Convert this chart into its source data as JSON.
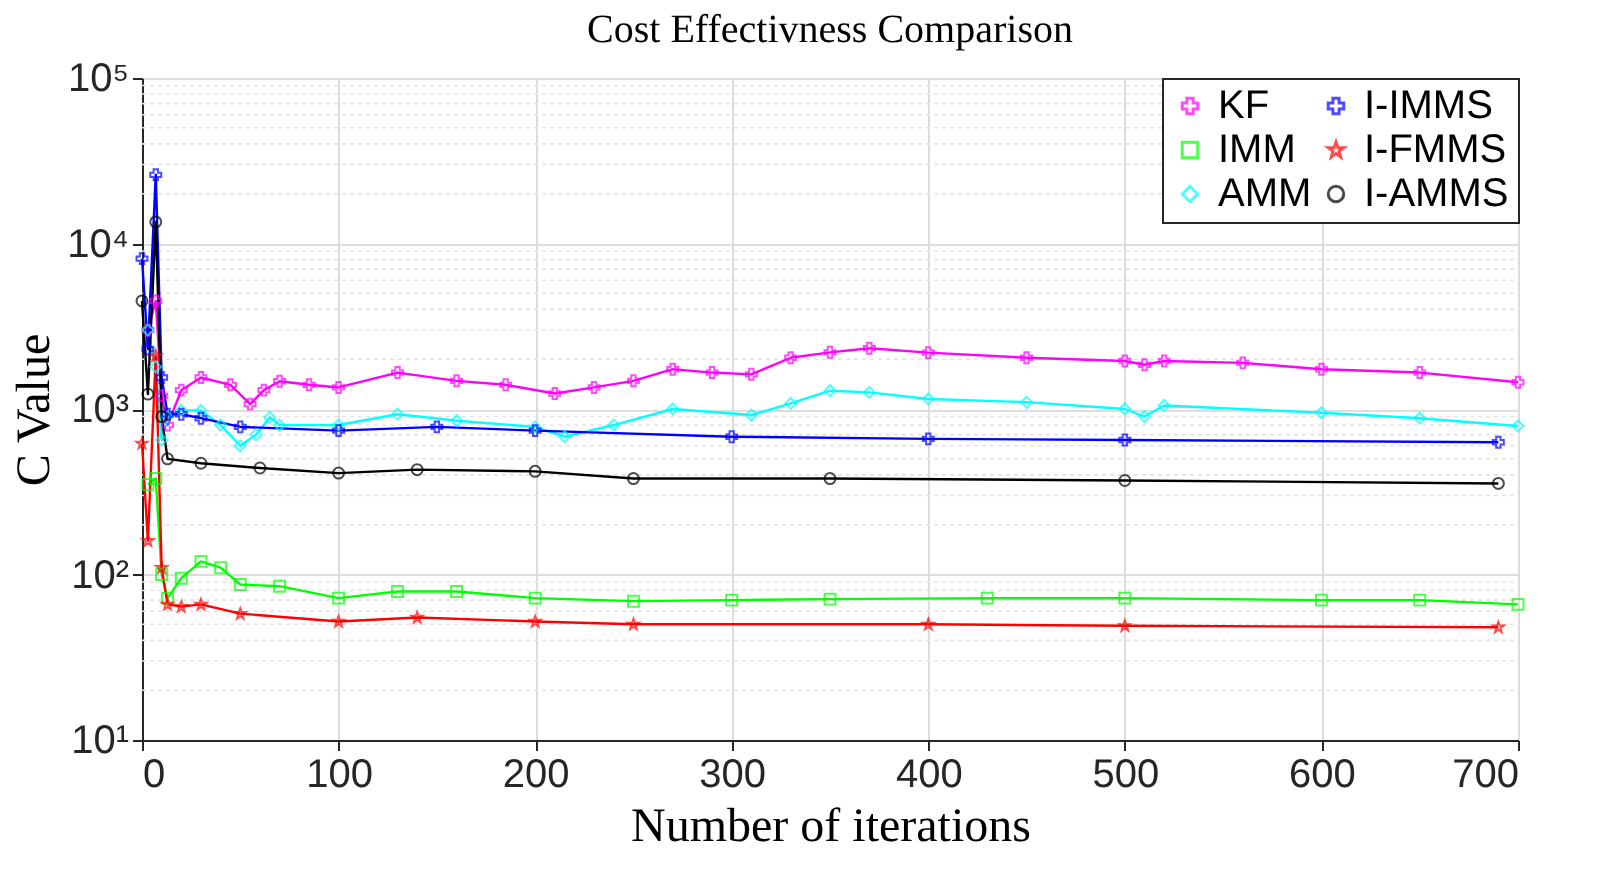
{
  "chart_data": {
    "type": "line",
    "title": "Cost Effectivness Comparison",
    "xlabel": "Number of iterations",
    "ylabel": "C Value",
    "log": "y",
    "grid": true,
    "legend": "top right",
    "line_style": "solid",
    "xlim": [
      0,
      700
    ],
    "xticks": [
      0,
      100,
      200,
      300,
      400,
      500,
      600,
      700
    ],
    "ylim": [
      10,
      100000
    ],
    "yticks": [
      {
        "value": 10,
        "label": "10¹"
      },
      {
        "value": 100,
        "label": "10²"
      },
      {
        "value": 1000,
        "label": "10³"
      },
      {
        "value": 10000,
        "label": "10⁴"
      },
      {
        "value": 100000,
        "label": "10⁵"
      }
    ],
    "series": [
      {
        "name": "KF",
        "color": "#ff00ff",
        "marker": "cross",
        "x": [
          3,
          7,
          10,
          13,
          20,
          30,
          45,
          55,
          62,
          70,
          85,
          100,
          130,
          160,
          185,
          210,
          230,
          250,
          270,
          290,
          310,
          330,
          350,
          370,
          400,
          450,
          500,
          510,
          520,
          560,
          600,
          650,
          700
        ],
        "values": [
          3000,
          4500,
          1200,
          800,
          1300,
          1550,
          1400,
          1070,
          1300,
          1470,
          1400,
          1350,
          1660,
          1480,
          1400,
          1240,
          1350,
          1480,
          1740,
          1660,
          1620,
          2040,
          2200,
          2330,
          2190,
          2040,
          1950,
          1850,
          1950,
          1900,
          1740,
          1660,
          1450
        ]
      },
      {
        "name": "IMM",
        "color": "#00ff00",
        "marker": "square",
        "x": [
          3,
          7,
          10,
          13,
          20,
          30,
          40,
          50,
          70,
          100,
          130,
          160,
          200,
          250,
          300,
          350,
          430,
          500,
          600,
          650,
          700
        ],
        "values": [
          350,
          380,
          100,
          72,
          95,
          120,
          110,
          87,
          85,
          72,
          79,
          79,
          72,
          69,
          70,
          71,
          72,
          72,
          70,
          70,
          66
        ]
      },
      {
        "name": "AMM",
        "color": "#00ffff",
        "marker": "diamond",
        "x": [
          3,
          7,
          10,
          13,
          20,
          30,
          40,
          50,
          58,
          65,
          70,
          100,
          130,
          160,
          200,
          215,
          240,
          270,
          310,
          330,
          350,
          370,
          400,
          450,
          500,
          510,
          520,
          600,
          650,
          700
        ],
        "values": [
          3000,
          1800,
          650,
          900,
          980,
          980,
          800,
          600,
          700,
          890,
          800,
          800,
          930,
          850,
          780,
          680,
          800,
          1000,
          920,
          1080,
          1290,
          1260,
          1150,
          1100,
          1000,
          900,
          1050,
          950,
          880,
          790
        ]
      },
      {
        "name": "I-IMMS",
        "color": "#0000ff",
        "marker": "cross",
        "x": [
          0,
          3,
          7,
          10,
          13,
          20,
          30,
          50,
          100,
          150,
          200,
          300,
          400,
          500,
          690
        ],
        "values": [
          8100,
          2300,
          26000,
          1550,
          930,
          930,
          880,
          780,
          740,
          780,
          740,
          680,
          660,
          650,
          630
        ]
      },
      {
        "name": "I-FMMS",
        "color": "#ff0000",
        "marker": "star",
        "x": [
          0,
          3,
          7,
          10,
          13,
          20,
          30,
          50,
          100,
          140,
          200,
          250,
          400,
          500,
          690
        ],
        "values": [
          620,
          160,
          2100,
          110,
          66,
          64,
          66,
          58,
          52,
          55,
          52,
          50,
          50,
          49,
          48
        ]
      },
      {
        "name": "I-AMMS",
        "color": "#000000",
        "marker": "circle",
        "x": [
          0,
          3,
          7,
          10,
          13,
          30,
          60,
          100,
          140,
          200,
          250,
          350,
          500,
          690
        ],
        "values": [
          4500,
          1230,
          13500,
          900,
          500,
          470,
          440,
          410,
          430,
          420,
          380,
          380,
          370,
          355
        ]
      }
    ]
  }
}
